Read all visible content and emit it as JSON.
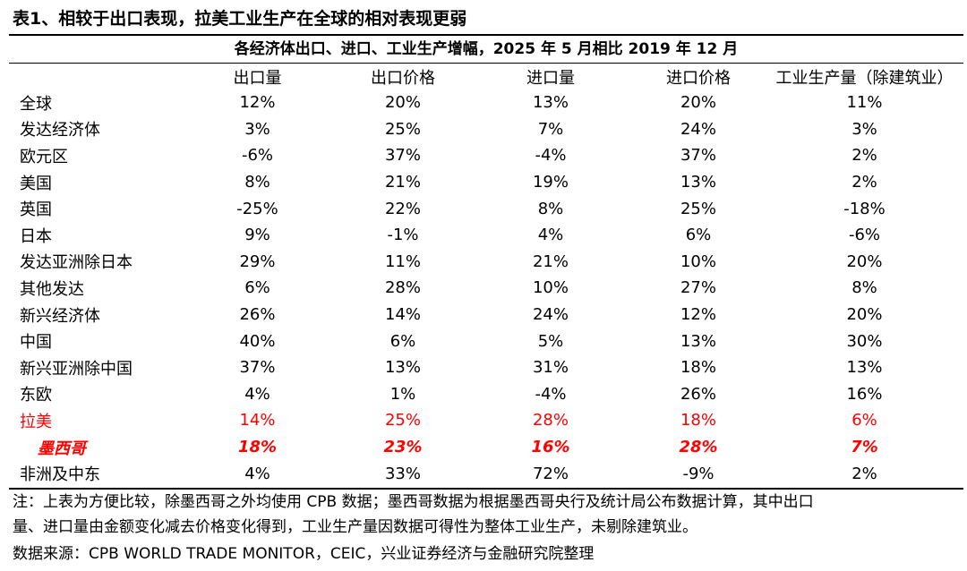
{
  "title": "表1、相较于出口表现，拉美工业生产在全球的相对表现更弱",
  "subtitle": "各经济体出口、进口、工业生产增幅，2025 年 5 月相比 2019 年 12 月",
  "columns": [
    "",
    "出口量",
    "出口价格",
    "进口量",
    "进口价格",
    "工业生产量（除建筑业）"
  ],
  "rows": [
    {
      "name": "全球",
      "values": [
        "12%",
        "20%",
        "13%",
        "20%",
        "11%"
      ],
      "style": "normal"
    },
    {
      "name": "发达经济体",
      "values": [
        "3%",
        "25%",
        "7%",
        "24%",
        "3%"
      ],
      "style": "normal"
    },
    {
      "name": "欧元区",
      "values": [
        "-6%",
        "37%",
        "-4%",
        "37%",
        "2%"
      ],
      "style": "normal"
    },
    {
      "name": "美国",
      "values": [
        "8%",
        "21%",
        "19%",
        "13%",
        "2%"
      ],
      "style": "normal"
    },
    {
      "name": "英国",
      "values": [
        "-25%",
        "22%",
        "8%",
        "25%",
        "-18%"
      ],
      "style": "normal"
    },
    {
      "name": "日本",
      "values": [
        "9%",
        "-1%",
        "4%",
        "6%",
        "-6%"
      ],
      "style": "normal"
    },
    {
      "name": "发达亚洲除日本",
      "values": [
        "29%",
        "11%",
        "21%",
        "10%",
        "20%"
      ],
      "style": "normal"
    },
    {
      "name": "其他发达",
      "values": [
        "6%",
        "28%",
        "10%",
        "27%",
        "8%"
      ],
      "style": "normal"
    },
    {
      "name": "新兴经济体",
      "values": [
        "26%",
        "14%",
        "24%",
        "12%",
        "20%"
      ],
      "style": "normal"
    },
    {
      "name": "中国",
      "values": [
        "40%",
        "6%",
        "5%",
        "13%",
        "30%"
      ],
      "style": "normal"
    },
    {
      "name": "新兴亚洲除中国",
      "values": [
        "37%",
        "13%",
        "31%",
        "18%",
        "13%"
      ],
      "style": "normal"
    },
    {
      "name": "东欧",
      "values": [
        "4%",
        "1%",
        "-4%",
        "26%",
        "16%"
      ],
      "style": "normal"
    },
    {
      "name": "拉美",
      "values": [
        "14%",
        "25%",
        "28%",
        "18%",
        "6%"
      ],
      "style": "red"
    },
    {
      "name": "墨西哥",
      "values": [
        "18%",
        "23%",
        "16%",
        "28%",
        "7%"
      ],
      "style": "redbold"
    },
    {
      "name": "非洲及中东",
      "values": [
        "4%",
        "33%",
        "72%",
        "-9%",
        "2%"
      ],
      "style": "normal"
    }
  ],
  "notes": {
    "line1": "注：上表为方便比较，除墨西哥之外均使用 CPB 数据；墨西哥数据为根据墨西哥央行及统计局公布数据计算，其中出口",
    "line2": "量、进口量由金额变化减去价格变化得到，工业生产量因数据可得性为整体工业生产，未剔除建筑业。",
    "source": "数据来源：CPB WORLD TRADE MONITOR，CEIC，兴业证券经济与金融研究院整理"
  },
  "colors": {
    "highlight": "#ff0000",
    "text": "#000000",
    "background": "#ffffff"
  }
}
